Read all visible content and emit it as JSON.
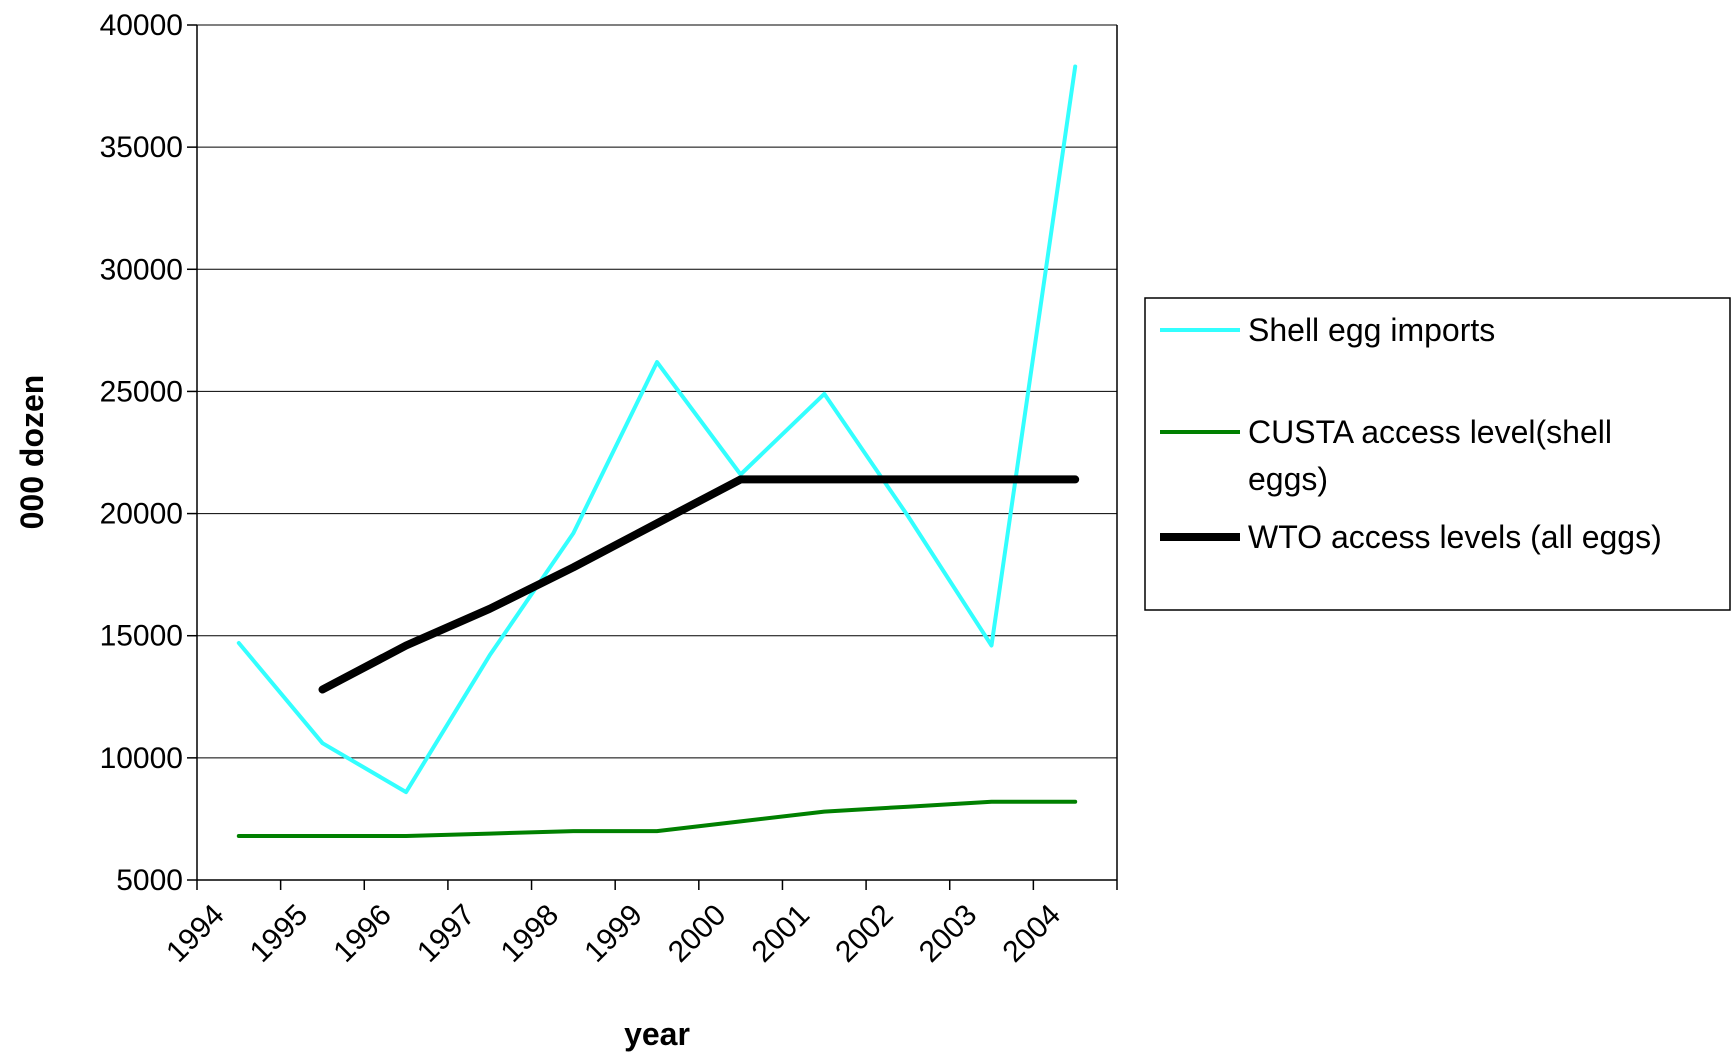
{
  "chart_data": {
    "type": "line",
    "title": "",
    "xlabel": "year",
    "ylabel": "000 dozen",
    "x": [
      "1994",
      "1995",
      "1996",
      "1997",
      "1998",
      "1999",
      "2000",
      "2001",
      "2002",
      "2003",
      "2004"
    ],
    "ylim": [
      5000,
      40000
    ],
    "yticks": [
      "5000",
      "10000",
      "15000",
      "20000",
      "25000",
      "30000",
      "35000",
      "40000"
    ],
    "grid": true,
    "legend": "right",
    "series": [
      {
        "name": "Shell egg imports",
        "color": "#33ffff",
        "values": [
          14700,
          10600,
          8600,
          14200,
          19200,
          26200,
          21600,
          24900,
          19900,
          14600,
          38300
        ]
      },
      {
        "name": "CUSTA access level(shell eggs)",
        "color": "#008000",
        "values": [
          6800,
          6800,
          6800,
          6900,
          7000,
          7000,
          7400,
          7800,
          8000,
          8200,
          8200
        ]
      },
      {
        "name": "WTO access levels (all eggs)",
        "color": "#000000",
        "values": [
          null,
          12800,
          14600,
          16100,
          17800,
          19600,
          21400,
          21400,
          21400,
          21400,
          21400
        ]
      }
    ]
  }
}
